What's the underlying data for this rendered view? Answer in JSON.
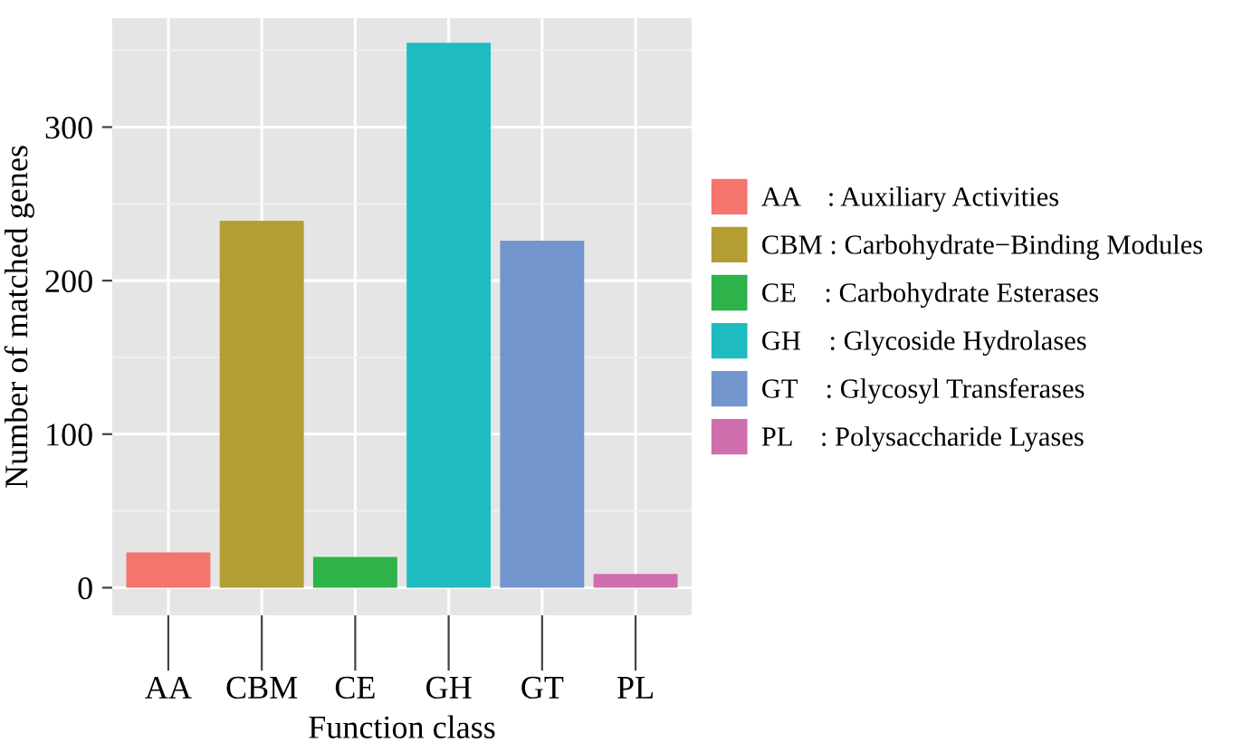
{
  "chart_data": {
    "type": "bar",
    "xlabel": "Function class",
    "ylabel": "Number of matched genes",
    "categories": [
      "AA",
      "CBM",
      "CE",
      "GH",
      "GT",
      "PL"
    ],
    "series": [
      {
        "name": "AA    : Auxiliary Activities",
        "color": "#f3756d",
        "values": [
          23,
          null,
          null,
          null,
          null,
          null
        ]
      },
      {
        "name": "CBM : Carbohydrate−Binding Modules",
        "color": "#b49d33",
        "values": [
          null,
          239,
          null,
          null,
          null,
          null
        ]
      },
      {
        "name": "CE    : Carbohydrate Esterases",
        "color": "#2db34a",
        "values": [
          null,
          null,
          20,
          null,
          null,
          null
        ]
      },
      {
        "name": "GH    : Glycoside Hydrolases",
        "color": "#1ebcc1",
        "values": [
          null,
          null,
          null,
          355,
          null,
          null
        ]
      },
      {
        "name": "GT    : Glycosyl Transferases",
        "color": "#7295ce",
        "values": [
          null,
          null,
          null,
          null,
          226,
          null
        ]
      },
      {
        "name": "PL    : Polysaccharide Lyases",
        "color": "#cf6fad",
        "values": [
          null,
          null,
          null,
          null,
          null,
          9
        ]
      }
    ],
    "ylim": [
      -18,
      371
    ],
    "yticks": [
      0,
      100,
      200,
      300
    ],
    "grid": true,
    "legend": "right"
  }
}
